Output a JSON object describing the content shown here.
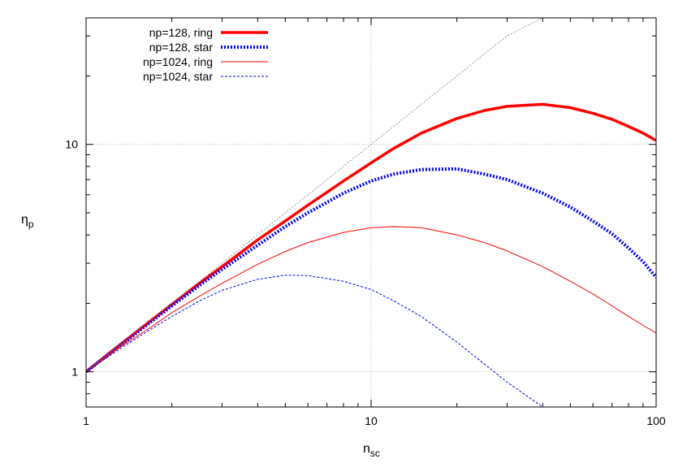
{
  "chart_data": {
    "type": "line",
    "xlabel": {
      "main": "n",
      "sub": "sc"
    },
    "ylabel": {
      "main": "η",
      "sub": "p"
    },
    "xscale": "log",
    "yscale": "log",
    "xlim": [
      1,
      100
    ],
    "ylim": [
      0.7,
      36
    ],
    "x_ticks": [
      1,
      10,
      100
    ],
    "x_tick_labels": [
      "1",
      "10",
      "100"
    ],
    "y_ticks": [
      1,
      10
    ],
    "y_tick_labels": [
      "1",
      "10"
    ],
    "grid": true,
    "legend_position": "top-left",
    "x": [
      1,
      1.3,
      1.7,
      2,
      2.5,
      3,
      4,
      5,
      6,
      8,
      10,
      12,
      15,
      20,
      25,
      30,
      40,
      50,
      60,
      70,
      80,
      90,
      100
    ],
    "series": [
      {
        "name": "np=128, ring",
        "color": "#ff0000",
        "style": "solid-thick",
        "values": [
          1.0,
          1.3,
          1.69,
          1.98,
          2.45,
          2.9,
          3.8,
          4.6,
          5.4,
          6.9,
          8.3,
          9.6,
          11.2,
          13.0,
          14.1,
          14.7,
          15.0,
          14.5,
          13.7,
          12.9,
          12.0,
          11.2,
          10.4
        ]
      },
      {
        "name": "np=128, star",
        "color": "#0000ff",
        "style": "dotted-thick",
        "values": [
          1.0,
          1.29,
          1.67,
          1.95,
          2.4,
          2.82,
          3.6,
          4.35,
          5.0,
          6.1,
          6.9,
          7.4,
          7.75,
          7.8,
          7.4,
          7.0,
          6.1,
          5.3,
          4.6,
          4.05,
          3.5,
          3.05,
          2.6
        ]
      },
      {
        "name": "np=1024, ring",
        "color": "#ff0000",
        "style": "solid-thin",
        "values": [
          1.0,
          1.27,
          1.58,
          1.82,
          2.15,
          2.45,
          2.97,
          3.38,
          3.7,
          4.1,
          4.3,
          4.35,
          4.3,
          4.0,
          3.7,
          3.4,
          2.9,
          2.5,
          2.2,
          1.95,
          1.75,
          1.6,
          1.48
        ]
      },
      {
        "name": "np=1024, star",
        "color": "#0000ff",
        "style": "dashed-thin",
        "values": [
          1.0,
          1.25,
          1.55,
          1.75,
          2.05,
          2.28,
          2.55,
          2.66,
          2.65,
          2.5,
          2.3,
          2.05,
          1.75,
          1.35,
          1.08,
          0.9,
          0.7,
          null,
          null,
          null,
          null,
          null,
          null
        ]
      },
      {
        "name": "",
        "color": "#808080",
        "style": "reference-dashed",
        "values": [
          1,
          1.3,
          1.7,
          2,
          2.5,
          3,
          4,
          5,
          6,
          8,
          10,
          12,
          15,
          20,
          25,
          30,
          36,
          null,
          null,
          null,
          null,
          null,
          null
        ]
      }
    ]
  }
}
